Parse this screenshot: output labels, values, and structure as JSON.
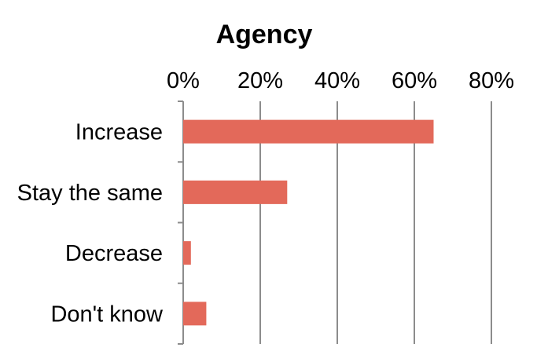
{
  "chart_data": {
    "type": "bar",
    "orientation": "horizontal",
    "title": "Agency",
    "categories": [
      "Increase",
      "Stay the same",
      "Decrease",
      "Don't know"
    ],
    "values": [
      65,
      27,
      2,
      6
    ],
    "value_unit": "%",
    "xlim": [
      0,
      80
    ],
    "x_ticks": [
      0,
      20,
      40,
      60,
      80
    ],
    "x_tick_labels": [
      "0%",
      "20%",
      "40%",
      "60%",
      "80%"
    ],
    "x_axis_position": "top",
    "grid": {
      "vertical": true,
      "horizontal": false
    },
    "legend": "none",
    "colors": {
      "bar": "#e3695a",
      "grid": "#8c8c8c",
      "axis": "#8c8c8c",
      "text": "#000000"
    }
  }
}
